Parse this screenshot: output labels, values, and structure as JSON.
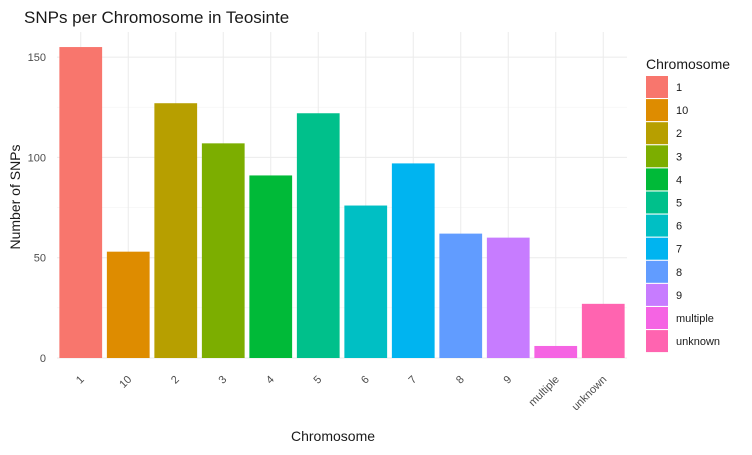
{
  "chart_data": {
    "type": "bar",
    "title": "SNPs per Chromosome in Teosinte",
    "xlabel": "Chromosome",
    "ylabel": "Number of SNPs",
    "categories": [
      "1",
      "10",
      "2",
      "3",
      "4",
      "5",
      "6",
      "7",
      "8",
      "9",
      "multiple",
      "unknown"
    ],
    "values": [
      155,
      53,
      127,
      107,
      91,
      122,
      76,
      97,
      62,
      60,
      6,
      27
    ],
    "colors": [
      "#F8766D",
      "#DE8C00",
      "#B79F00",
      "#7CAE00",
      "#00BA38",
      "#00C08B",
      "#00BFC4",
      "#00B4F0",
      "#619CFF",
      "#C77CFF",
      "#F564E3",
      "#FF64B0"
    ],
    "ylim": [
      0,
      160
    ],
    "yticks": [
      0,
      50,
      100,
      150
    ],
    "grid": true,
    "legend": {
      "title": "Chromosome",
      "placement": "right",
      "entries": [
        "1",
        "10",
        "2",
        "3",
        "4",
        "5",
        "6",
        "7",
        "8",
        "9",
        "multiple",
        "unknown"
      ]
    }
  }
}
